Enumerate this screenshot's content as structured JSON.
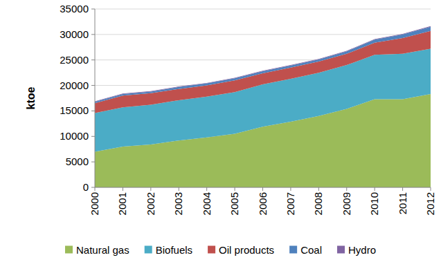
{
  "chart_data": {
    "type": "area",
    "stacked": true,
    "y_label": "ktoe",
    "categories": [
      "2000",
      "2001",
      "2002",
      "2003",
      "2004",
      "2005",
      "2006",
      "2007",
      "2008",
      "2009",
      "2010",
      "2011",
      "2012"
    ],
    "series": [
      {
        "name": "Natural gas",
        "color": "#9bbb59",
        "values": [
          7000,
          8000,
          8400,
          9200,
          9800,
          10500,
          11900,
          12900,
          14000,
          15400,
          17300,
          17300,
          18300
        ]
      },
      {
        "name": "Biofuels",
        "color": "#4bacc6",
        "values": [
          7600,
          7700,
          7800,
          7900,
          8000,
          8200,
          8300,
          8400,
          8500,
          8600,
          8700,
          8900,
          8900
        ]
      },
      {
        "name": "Oil products",
        "color": "#c0504d",
        "values": [
          1900,
          2300,
          2300,
          2200,
          2200,
          2300,
          2200,
          2200,
          2200,
          2200,
          2400,
          3100,
          3500
        ]
      },
      {
        "name": "Coal",
        "color": "#4f81bd",
        "values": [
          300,
          300,
          300,
          400,
          400,
          400,
          400,
          400,
          400,
          500,
          600,
          700,
          800
        ]
      },
      {
        "name": "Hydro",
        "color": "#8064a2",
        "values": [
          100,
          100,
          100,
          100,
          100,
          100,
          100,
          100,
          100,
          100,
          100,
          100,
          150
        ]
      }
    ],
    "ylim": [
      0,
      35000
    ],
    "yticks": [
      0,
      5000,
      10000,
      15000,
      20000,
      25000,
      30000,
      35000
    ],
    "grid": true,
    "legend": "bottom"
  }
}
